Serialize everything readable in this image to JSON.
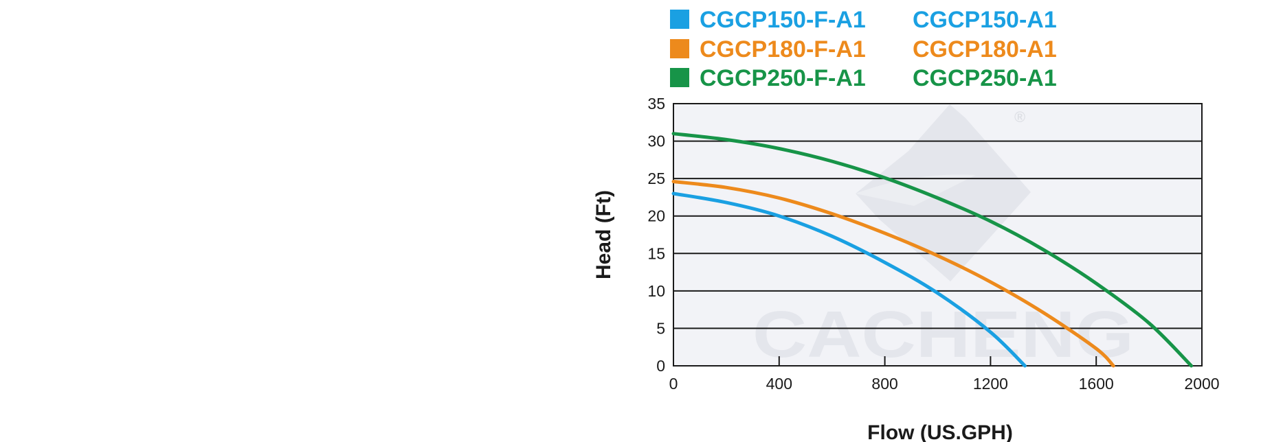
{
  "chart_data": {
    "type": "line",
    "title": "",
    "xlabel": "Flow (US.GPH)",
    "ylabel": "Head (Ft)",
    "xlim": [
      0,
      2000
    ],
    "ylim": [
      0,
      35
    ],
    "x_ticks": [
      0,
      400,
      800,
      1200,
      1600,
      2000
    ],
    "y_ticks": [
      0,
      5,
      10,
      15,
      20,
      25,
      30,
      35
    ],
    "grid": "horizontal",
    "legend_position": "top",
    "watermark": {
      "text": "CACHENG",
      "mark": "®"
    },
    "series": [
      {
        "name": "CGCP150-F-A1",
        "alt_name": "CGCP150-A1",
        "color": "#1aa0e2",
        "x": [
          0,
          200,
          400,
          600,
          800,
          1000,
          1200,
          1330
        ],
        "y": [
          23,
          21.8,
          20.0,
          17.3,
          13.8,
          9.7,
          4.5,
          0
        ]
      },
      {
        "name": "CGCP180-F-A1",
        "alt_name": "CGCP180-A1",
        "color": "#ed8a1c",
        "x": [
          0,
          200,
          400,
          600,
          800,
          1000,
          1200,
          1400,
          1600,
          1665
        ],
        "y": [
          24.6,
          23.8,
          22.4,
          20.3,
          17.7,
          14.7,
          11.2,
          7.1,
          2.3,
          0
        ]
      },
      {
        "name": "CGCP250-F-A1",
        "alt_name": "CGCP250-A1",
        "color": "#179448",
        "x": [
          0,
          200,
          400,
          600,
          800,
          1000,
          1200,
          1400,
          1600,
          1800,
          1960
        ],
        "y": [
          31,
          30.2,
          29.0,
          27.3,
          25.1,
          22.4,
          19.3,
          15.5,
          11.0,
          5.7,
          0
        ]
      }
    ]
  }
}
